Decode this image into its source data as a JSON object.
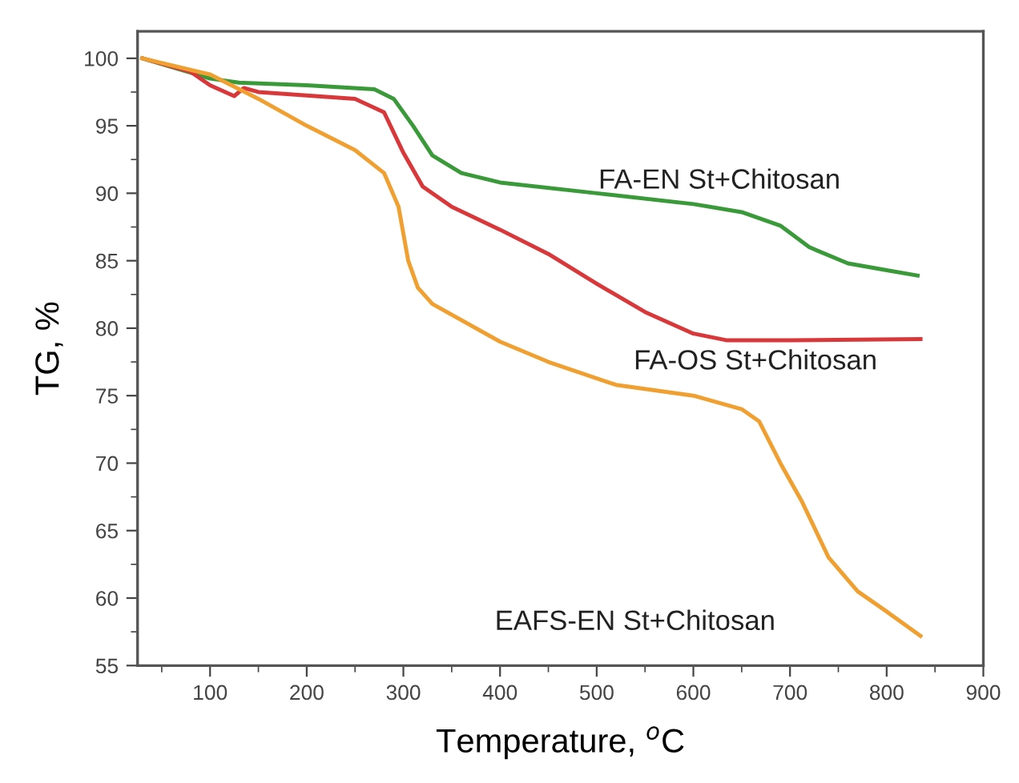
{
  "chart_data": {
    "type": "line",
    "xlabel": "Temperature, $^{o}$C",
    "ylabel": "TG, %",
    "xlim": [
      25,
      900
    ],
    "xticks": [
      100,
      200,
      300,
      400,
      500,
      600,
      700,
      800,
      900
    ],
    "ylim": [
      55,
      102
    ],
    "yticks": [
      55,
      60,
      65,
      70,
      75,
      80,
      85,
      90,
      95,
      100
    ],
    "grid": false,
    "legend": false,
    "marker": "none",
    "line_style": "solid",
    "series": [
      {
        "name": "FA-EN St+Chitosan",
        "color": "#3a9a3a",
        "x": [
          30,
          100,
          130,
          200,
          270,
          290,
          310,
          330,
          360,
          400,
          500,
          600,
          650,
          690,
          720,
          760,
          800,
          832
        ],
        "values": [
          100,
          98.5,
          98.2,
          98,
          97.7,
          97,
          95,
          92.8,
          91.5,
          90.8,
          90,
          89.2,
          88.6,
          87.6,
          86,
          84.8,
          84.3,
          83.9
        ]
      },
      {
        "name": "FA-OS St+Chitosan",
        "color": "#d9383a",
        "x": [
          30,
          80,
          100,
          125,
          135,
          150,
          250,
          280,
          300,
          320,
          350,
          400,
          450,
          500,
          550,
          600,
          635,
          700,
          835
        ],
        "values": [
          100,
          99,
          98,
          97.2,
          97.8,
          97.5,
          97,
          96,
          93,
          90.5,
          89,
          87.3,
          85.5,
          83.3,
          81.2,
          79.6,
          79.1,
          79.1,
          79.2
        ]
      },
      {
        "name": "EAFS-EN St+Chitosan",
        "color": "#f0a030",
        "x": [
          30,
          100,
          150,
          200,
          250,
          280,
          295,
          305,
          315,
          330,
          400,
          450,
          520,
          600,
          650,
          668,
          690,
          712,
          740,
          770,
          800,
          835
        ],
        "values": [
          100,
          98.8,
          97,
          95,
          93.2,
          91.5,
          89,
          85,
          83,
          81.8,
          79,
          77.5,
          75.8,
          75,
          74,
          73.1,
          70,
          67.2,
          63,
          60.5,
          59,
          57.2
        ]
      }
    ]
  }
}
